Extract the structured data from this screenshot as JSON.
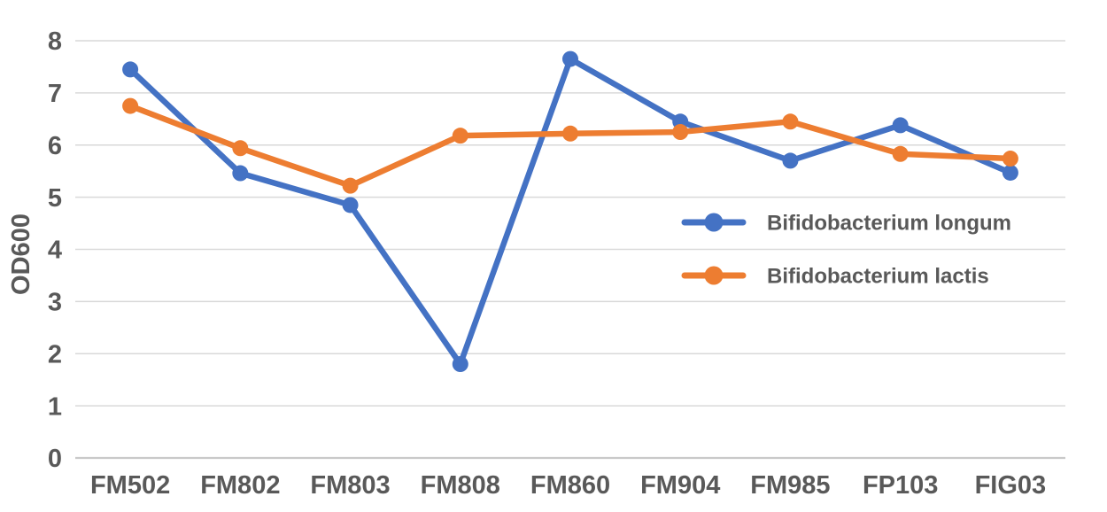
{
  "chart_data": {
    "type": "line",
    "title": "",
    "xlabel": "",
    "ylabel": "OD600",
    "ylim": [
      0,
      8
    ],
    "ytick_step": 1,
    "yticks": [
      0,
      1,
      2,
      3,
      4,
      5,
      6,
      7,
      8
    ],
    "grid": true,
    "legend_position": "inside-center-right",
    "categories": [
      "FM502",
      "FM802",
      "FM803",
      "FM808",
      "FM860",
      "FM904",
      "FM985",
      "FP103",
      "FIG03"
    ],
    "series": [
      {
        "name": "Bifidobacterium longum",
        "color": "#4472C4",
        "values": [
          7.45,
          5.46,
          4.85,
          1.8,
          7.65,
          6.45,
          5.7,
          6.38,
          5.47
        ]
      },
      {
        "name": "Bifidobacterium lactis",
        "color": "#ED7D31",
        "values": [
          6.75,
          5.94,
          5.22,
          6.18,
          6.22,
          6.25,
          6.45,
          5.83,
          5.74
        ]
      }
    ]
  },
  "styles": {
    "background": "#FFFFFF",
    "axis_text_color": "#595959",
    "gridline_color": "#D9D9D9",
    "axisline_color": "#C9C9C9"
  }
}
